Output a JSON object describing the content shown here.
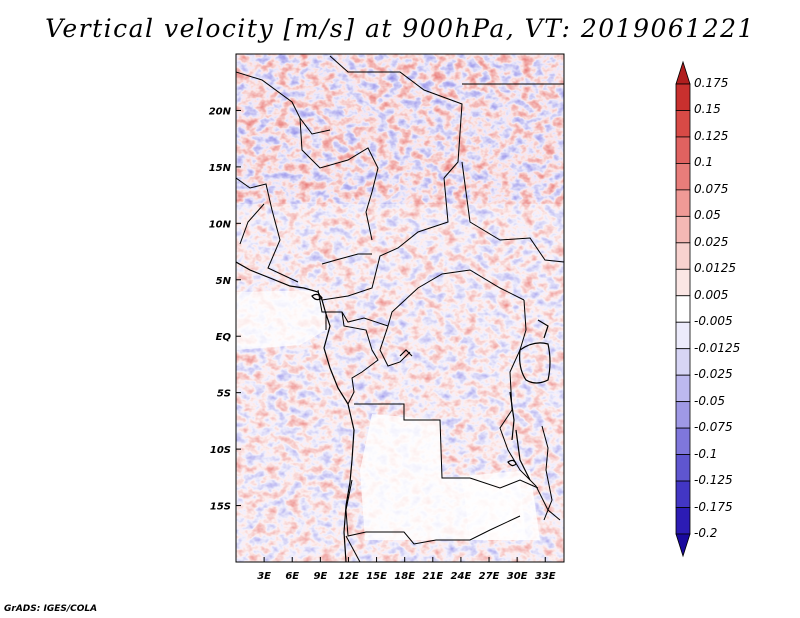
{
  "title": "Vertical velocity [m/s] at 900hPa, VT: 2019061221",
  "credit": "GrADS: IGES/COLA",
  "map": {
    "lat_range": [
      -20,
      25
    ],
    "lon_range": [
      0,
      35
    ],
    "lat_labels": [
      "20N",
      "15N",
      "10N",
      "5N",
      "EQ",
      "5S",
      "10S",
      "15S"
    ],
    "lat_label_values": [
      20,
      15,
      10,
      5,
      0,
      -5,
      -10,
      -15
    ],
    "lon_labels": [
      "3E",
      "6E",
      "9E",
      "12E",
      "15E",
      "18E",
      "21E",
      "24E",
      "27E",
      "30E",
      "33E"
    ],
    "lon_label_values": [
      3,
      6,
      9,
      12,
      15,
      18,
      21,
      24,
      27,
      30,
      33
    ]
  },
  "colorbar": {
    "labels": [
      "0.175",
      "0.15",
      "0.125",
      "0.1",
      "0.075",
      "0.05",
      "0.025",
      "0.0125",
      "0.005",
      "-0.005",
      "-0.0125",
      "-0.025",
      "-0.05",
      "-0.075",
      "-0.1",
      "-0.125",
      "-0.175",
      "-0.2"
    ],
    "colors": [
      "#b01e1e",
      "#c8302e",
      "#d84a46",
      "#e06260",
      "#e87d7a",
      "#f09a96",
      "#f4b8b4",
      "#f8d2cf",
      "#fbe6e4",
      "#ffffff",
      "#ecebfb",
      "#d7d5f5",
      "#bdb9ef",
      "#9f99e6",
      "#7f77dc",
      "#5f56d0",
      "#4236c4",
      "#2c1cb4",
      "#1a0a9e"
    ]
  }
}
